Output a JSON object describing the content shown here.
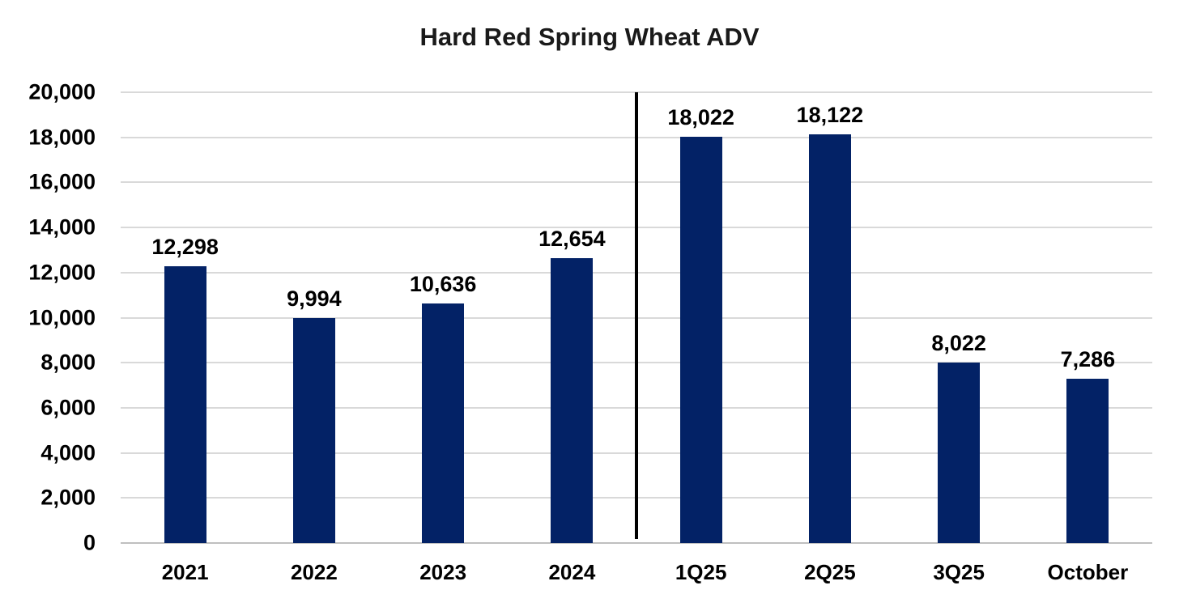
{
  "chart_data": {
    "type": "bar",
    "title": "Hard Red Spring Wheat ADV",
    "categories": [
      "2021",
      "2022",
      "2023",
      "2024",
      "1Q25",
      "2Q25",
      "3Q25",
      "October"
    ],
    "values": [
      12298,
      9994,
      10636,
      12654,
      18022,
      18122,
      8022,
      7286
    ],
    "value_labels": [
      "12,298",
      "9,994",
      "10,636",
      "12,654",
      "18,022",
      "18,122",
      "8,022",
      "7,286"
    ],
    "xlabel": "",
    "ylabel": "",
    "ylim": [
      0,
      20000
    ],
    "ytick_step": 2000,
    "ytick_labels": [
      "0",
      "2,000",
      "4,000",
      "6,000",
      "8,000",
      "10,000",
      "12,000",
      "14,000",
      "16,000",
      "18,000",
      "20,000"
    ],
    "grid": true,
    "legend": "none",
    "separator_after_index": 3,
    "colors": {
      "bar": "#032266",
      "gridline": "#d9d9d9",
      "axis_line": "#bfbfbf",
      "separator": "#000000",
      "text": "#000000"
    }
  }
}
